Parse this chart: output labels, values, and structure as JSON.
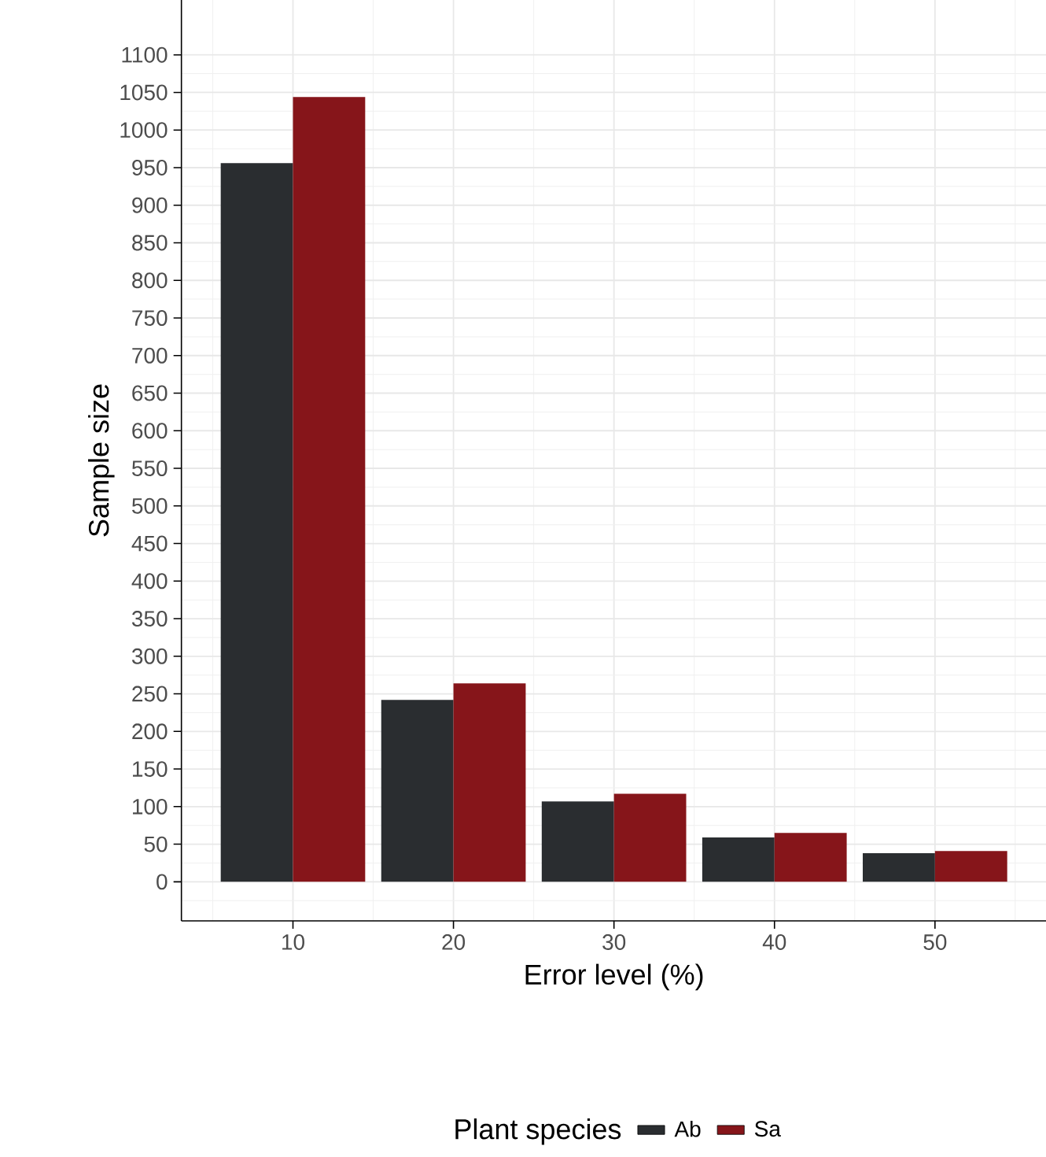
{
  "chart_data": {
    "type": "bar",
    "xlabel": "Error level (%)",
    "ylabel": "Sample size",
    "legend_title": "Plant species",
    "x": [
      10,
      20,
      30,
      40,
      50
    ],
    "series": [
      {
        "name": "Ab",
        "color": "#2a2d30",
        "values": [
          956,
          242,
          107,
          59,
          38
        ]
      },
      {
        "name": "Sa",
        "color": "#86151a",
        "values": [
          1044,
          264,
          117,
          65,
          41
        ]
      }
    ],
    "xlim": [
      3.05,
      56.95
    ],
    "ylim": [
      -52,
      1173
    ],
    "xticks": [
      10,
      20,
      30,
      40,
      50
    ],
    "yticks": [
      0,
      50,
      100,
      150,
      200,
      250,
      300,
      350,
      400,
      450,
      500,
      550,
      600,
      650,
      700,
      750,
      800,
      850,
      900,
      950,
      1000,
      1050,
      1100
    ],
    "grid": true,
    "legend": "bottom"
  }
}
